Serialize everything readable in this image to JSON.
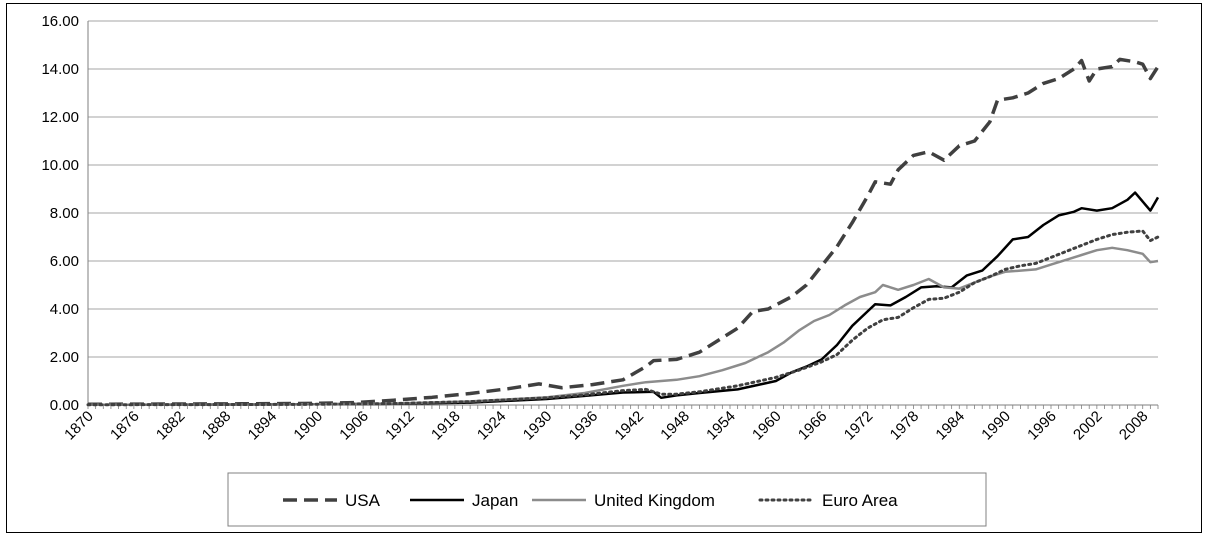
{
  "chart_data": {
    "type": "line",
    "title": "",
    "xlabel": "",
    "ylabel": "",
    "ylim": [
      0,
      16
    ],
    "xlim": [
      1870,
      2010
    ],
    "grid": "horizontal",
    "legend_position": "bottom",
    "y_ticks": [
      "0.00",
      "2.00",
      "4.00",
      "6.00",
      "8.00",
      "10.00",
      "12.00",
      "14.00",
      "16.00"
    ],
    "x_ticks": [
      "1870",
      "1876",
      "1882",
      "1888",
      "1894",
      "1900",
      "1906",
      "1912",
      "1918",
      "1924",
      "1930",
      "1936",
      "1942",
      "1948",
      "1954",
      "1960",
      "1966",
      "1972",
      "1978",
      "1984",
      "1990",
      "1996",
      "2002",
      "2008"
    ],
    "series": [
      {
        "name": "USA",
        "color": "#404040",
        "dash": "dashed",
        "points": [
          [
            1870,
            0.03
          ],
          [
            1880,
            0.04
          ],
          [
            1890,
            0.05
          ],
          [
            1900,
            0.07
          ],
          [
            1905,
            0.1
          ],
          [
            1910,
            0.2
          ],
          [
            1915,
            0.32
          ],
          [
            1920,
            0.48
          ],
          [
            1925,
            0.68
          ],
          [
            1929,
            0.88
          ],
          [
            1932,
            0.72
          ],
          [
            1936,
            0.85
          ],
          [
            1940,
            1.05
          ],
          [
            1943,
            1.6
          ],
          [
            1944,
            1.85
          ],
          [
            1947,
            1.9
          ],
          [
            1950,
            2.2
          ],
          [
            1953,
            2.8
          ],
          [
            1955,
            3.2
          ],
          [
            1957,
            3.9
          ],
          [
            1959,
            4.0
          ],
          [
            1962,
            4.5
          ],
          [
            1964,
            5.0
          ],
          [
            1966,
            5.8
          ],
          [
            1968,
            6.6
          ],
          [
            1970,
            7.6
          ],
          [
            1972,
            8.7
          ],
          [
            1973,
            9.3
          ],
          [
            1975,
            9.2
          ],
          [
            1976,
            9.8
          ],
          [
            1978,
            10.4
          ],
          [
            1980,
            10.55
          ],
          [
            1982,
            10.2
          ],
          [
            1984,
            10.8
          ],
          [
            1986,
            11.0
          ],
          [
            1988,
            11.8
          ],
          [
            1989,
            12.7
          ],
          [
            1991,
            12.8
          ],
          [
            1993,
            13.0
          ],
          [
            1995,
            13.4
          ],
          [
            1997,
            13.6
          ],
          [
            1999,
            14.0
          ],
          [
            2000,
            14.35
          ],
          [
            2001,
            13.5
          ],
          [
            2002,
            14.0
          ],
          [
            2004,
            14.1
          ],
          [
            2005,
            14.4
          ],
          [
            2007,
            14.3
          ],
          [
            2008,
            14.2
          ],
          [
            2009,
            13.6
          ],
          [
            2010,
            14.1
          ]
        ]
      },
      {
        "name": "Japan",
        "color": "#000000",
        "dash": "solid",
        "points": [
          [
            1870,
            0.01
          ],
          [
            1890,
            0.02
          ],
          [
            1900,
            0.03
          ],
          [
            1910,
            0.05
          ],
          [
            1920,
            0.1
          ],
          [
            1930,
            0.25
          ],
          [
            1935,
            0.38
          ],
          [
            1940,
            0.52
          ],
          [
            1944,
            0.55
          ],
          [
            1945,
            0.3
          ],
          [
            1947,
            0.4
          ],
          [
            1950,
            0.5
          ],
          [
            1955,
            0.65
          ],
          [
            1960,
            1.0
          ],
          [
            1962,
            1.35
          ],
          [
            1964,
            1.6
          ],
          [
            1966,
            1.9
          ],
          [
            1968,
            2.5
          ],
          [
            1970,
            3.3
          ],
          [
            1972,
            3.9
          ],
          [
            1973,
            4.2
          ],
          [
            1975,
            4.15
          ],
          [
            1977,
            4.5
          ],
          [
            1979,
            4.9
          ],
          [
            1981,
            4.95
          ],
          [
            1983,
            4.9
          ],
          [
            1985,
            5.4
          ],
          [
            1987,
            5.6
          ],
          [
            1989,
            6.2
          ],
          [
            1991,
            6.9
          ],
          [
            1993,
            7.0
          ],
          [
            1995,
            7.5
          ],
          [
            1997,
            7.9
          ],
          [
            1999,
            8.05
          ],
          [
            2000,
            8.2
          ],
          [
            2002,
            8.1
          ],
          [
            2004,
            8.2
          ],
          [
            2006,
            8.55
          ],
          [
            2007,
            8.85
          ],
          [
            2009,
            8.1
          ],
          [
            2010,
            8.65
          ]
        ]
      },
      {
        "name": "United Kingdom",
        "color": "#8c8c8c",
        "dash": "solid",
        "points": [
          [
            1870,
            0.01
          ],
          [
            1890,
            0.02
          ],
          [
            1900,
            0.03
          ],
          [
            1910,
            0.06
          ],
          [
            1920,
            0.15
          ],
          [
            1930,
            0.32
          ],
          [
            1935,
            0.5
          ],
          [
            1940,
            0.8
          ],
          [
            1943,
            0.95
          ],
          [
            1947,
            1.05
          ],
          [
            1950,
            1.2
          ],
          [
            1953,
            1.45
          ],
          [
            1956,
            1.75
          ],
          [
            1959,
            2.2
          ],
          [
            1961,
            2.6
          ],
          [
            1963,
            3.1
          ],
          [
            1965,
            3.5
          ],
          [
            1967,
            3.75
          ],
          [
            1969,
            4.15
          ],
          [
            1971,
            4.5
          ],
          [
            1973,
            4.7
          ],
          [
            1974,
            5.0
          ],
          [
            1976,
            4.8
          ],
          [
            1978,
            5.0
          ],
          [
            1980,
            5.25
          ],
          [
            1982,
            4.9
          ],
          [
            1984,
            4.85
          ],
          [
            1986,
            5.1
          ],
          [
            1988,
            5.35
          ],
          [
            1990,
            5.55
          ],
          [
            1992,
            5.6
          ],
          [
            1994,
            5.65
          ],
          [
            1996,
            5.85
          ],
          [
            1998,
            6.05
          ],
          [
            2000,
            6.25
          ],
          [
            2002,
            6.45
          ],
          [
            2004,
            6.55
          ],
          [
            2006,
            6.45
          ],
          [
            2008,
            6.3
          ],
          [
            2009,
            5.95
          ],
          [
            2010,
            6.0
          ]
        ]
      },
      {
        "name": "Euro Area",
        "color": "#404040",
        "dash": "dotted",
        "points": [
          [
            1870,
            0.01
          ],
          [
            1890,
            0.02
          ],
          [
            1900,
            0.03
          ],
          [
            1910,
            0.06
          ],
          [
            1920,
            0.14
          ],
          [
            1930,
            0.3
          ],
          [
            1935,
            0.42
          ],
          [
            1940,
            0.6
          ],
          [
            1943,
            0.65
          ],
          [
            1945,
            0.45
          ],
          [
            1947,
            0.45
          ],
          [
            1950,
            0.55
          ],
          [
            1955,
            0.8
          ],
          [
            1960,
            1.15
          ],
          [
            1963,
            1.45
          ],
          [
            1966,
            1.8
          ],
          [
            1968,
            2.1
          ],
          [
            1970,
            2.7
          ],
          [
            1972,
            3.2
          ],
          [
            1974,
            3.55
          ],
          [
            1976,
            3.65
          ],
          [
            1978,
            4.05
          ],
          [
            1980,
            4.4
          ],
          [
            1982,
            4.45
          ],
          [
            1984,
            4.7
          ],
          [
            1986,
            5.1
          ],
          [
            1988,
            5.35
          ],
          [
            1990,
            5.65
          ],
          [
            1992,
            5.8
          ],
          [
            1994,
            5.9
          ],
          [
            1996,
            6.15
          ],
          [
            1998,
            6.4
          ],
          [
            2000,
            6.65
          ],
          [
            2002,
            6.9
          ],
          [
            2004,
            7.1
          ],
          [
            2006,
            7.2
          ],
          [
            2008,
            7.25
          ],
          [
            2009,
            6.85
          ],
          [
            2010,
            7.0
          ]
        ]
      }
    ]
  }
}
